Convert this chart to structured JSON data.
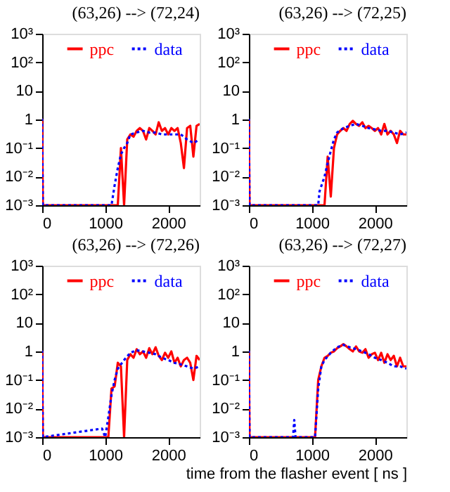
{
  "chart_data": [
    {
      "type": "line",
      "title": "(63,26) --> (72,24)",
      "xlim": [
        0,
        2500
      ],
      "xticks": [
        0,
        1000,
        2000
      ],
      "ylim": [
        0.001,
        1000
      ],
      "log": true,
      "grid": false,
      "legend": "top",
      "yticks": [
        {
          "value": 1000,
          "label": "10³"
        },
        {
          "value": 100,
          "label": "10²"
        },
        {
          "value": 10,
          "label": "10"
        },
        {
          "value": 1,
          "label": "1"
        },
        {
          "value": 0.1,
          "label": "10⁻¹"
        },
        {
          "value": 0.01,
          "label": "10⁻²"
        },
        {
          "value": 0.001,
          "label": "10⁻³"
        }
      ],
      "series": [
        {
          "name": "ppc",
          "color": "#ff0000",
          "line_style": "solid",
          "x": [
            0,
            0,
            10,
            1200,
            1250,
            1300,
            1350,
            1400,
            1450,
            1500,
            1550,
            1600,
            1650,
            1700,
            1750,
            1800,
            1850,
            1900,
            1950,
            2000,
            2050,
            2100,
            2150,
            2200,
            2250,
            2300,
            2350,
            2400,
            2450,
            2500
          ],
          "values": [
            0.001,
            1,
            0.001,
            0.001,
            0.1,
            0.001,
            0.2,
            0.3,
            0.25,
            0.4,
            0.5,
            0.4,
            0.2,
            0.5,
            0.4,
            0.3,
            0.8,
            0.4,
            0.5,
            0.3,
            0.5,
            0.4,
            0.5,
            0.15,
            0.02,
            0.5,
            0.6,
            0.05,
            0.6,
            0.7
          ]
        },
        {
          "name": "data",
          "color": "#0000ff",
          "line_style": "dotted",
          "x": [
            0,
            0,
            10,
            1100,
            1150,
            1200,
            1250,
            1300,
            1350,
            1400,
            1500,
            1600,
            1700,
            1800,
            1900,
            2000,
            2100,
            2200,
            2300,
            2400,
            2500
          ],
          "values": [
            0.001,
            1,
            0.001,
            0.001,
            0.005,
            0.02,
            0.06,
            0.1,
            0.15,
            0.3,
            0.35,
            0.4,
            0.35,
            0.35,
            0.3,
            0.3,
            0.3,
            0.3,
            0.2,
            0.15,
            0.2
          ]
        }
      ]
    },
    {
      "type": "line",
      "title": "(63,26) --> (72,25)",
      "xlim": [
        0,
        2500
      ],
      "xticks": [
        0,
        1000,
        2000
      ],
      "ylim": [
        0.001,
        1000
      ],
      "log": true,
      "grid": false,
      "legend": "top",
      "yticks": [
        {
          "value": 1000,
          "label": "10³"
        },
        {
          "value": 100,
          "label": "10²"
        },
        {
          "value": 10,
          "label": "10"
        },
        {
          "value": 1,
          "label": "1"
        },
        {
          "value": 0.1,
          "label": "10⁻¹"
        },
        {
          "value": 0.01,
          "label": "10⁻²"
        },
        {
          "value": 0.001,
          "label": "10⁻³"
        }
      ],
      "series": [
        {
          "name": "ppc",
          "color": "#ff0000",
          "line_style": "solid",
          "x": [
            0,
            0,
            10,
            1200,
            1250,
            1300,
            1350,
            1400,
            1450,
            1500,
            1550,
            1600,
            1650,
            1700,
            1750,
            1800,
            1850,
            1900,
            1950,
            2000,
            2050,
            2100,
            2150,
            2200,
            2250,
            2300,
            2350,
            2400,
            2450,
            2500
          ],
          "values": [
            0.001,
            1,
            0.001,
            0.001,
            0.05,
            0.002,
            0.1,
            0.3,
            0.4,
            0.5,
            0.4,
            0.7,
            0.9,
            0.7,
            0.6,
            0.8,
            0.5,
            0.6,
            0.5,
            0.4,
            0.5,
            0.3,
            0.7,
            0.3,
            0.4,
            0.3,
            0.15,
            0.4,
            0.3,
            0.3
          ]
        },
        {
          "name": "data",
          "color": "#0000ff",
          "line_style": "dotted",
          "x": [
            0,
            0,
            10,
            1100,
            1120,
            1200,
            1250,
            1300,
            1350,
            1400,
            1500,
            1600,
            1700,
            1800,
            1900,
            2000,
            2100,
            2200,
            2300,
            2400,
            2500
          ],
          "values": [
            0.001,
            1,
            0.001,
            0.001,
            0.003,
            0.01,
            0.03,
            0.08,
            0.2,
            0.35,
            0.5,
            0.6,
            0.7,
            0.6,
            0.5,
            0.45,
            0.4,
            0.4,
            0.35,
            0.3,
            0.35
          ]
        }
      ]
    },
    {
      "type": "line",
      "title": "(63,26) --> (72,26)",
      "xlim": [
        0,
        2500
      ],
      "xticks": [
        0,
        1000,
        2000
      ],
      "ylim": [
        0.001,
        1000
      ],
      "log": true,
      "grid": false,
      "legend": "top",
      "yticks": [
        {
          "value": 1000,
          "label": "10³"
        },
        {
          "value": 100,
          "label": "10²"
        },
        {
          "value": 10,
          "label": "10"
        },
        {
          "value": 1,
          "label": "1"
        },
        {
          "value": 0.1,
          "label": "10⁻¹"
        },
        {
          "value": 0.01,
          "label": "10⁻²"
        },
        {
          "value": 0.001,
          "label": "10⁻³"
        }
      ],
      "series": [
        {
          "name": "ppc",
          "color": "#ff0000",
          "line_style": "solid",
          "x": [
            0,
            0,
            10,
            1050,
            1100,
            1150,
            1200,
            1250,
            1300,
            1350,
            1400,
            1450,
            1500,
            1550,
            1600,
            1650,
            1700,
            1750,
            1800,
            1850,
            1900,
            1950,
            2000,
            2050,
            2100,
            2150,
            2200,
            2250,
            2300,
            2350,
            2400,
            2450,
            2500
          ],
          "values": [
            0.001,
            1,
            0.001,
            0.001,
            0.05,
            0.06,
            0.4,
            0.3,
            0.001,
            0.5,
            0.8,
            0.6,
            1.2,
            0.8,
            1.0,
            0.6,
            1.3,
            0.8,
            1.4,
            0.7,
            0.5,
            0.9,
            0.6,
            1.0,
            0.4,
            0.6,
            0.3,
            0.5,
            0.6,
            0.4,
            0.1,
            0.7,
            0.5
          ]
        },
        {
          "name": "data",
          "color": "#0000ff",
          "line_style": "dotted",
          "x": [
            0,
            0,
            10,
            950,
            1000,
            1050,
            1100,
            1150,
            1200,
            1300,
            1400,
            1500,
            1600,
            1700,
            1800,
            1900,
            2000,
            2100,
            2200,
            2300,
            2400,
            2500
          ],
          "values": [
            0.001,
            1,
            0.001,
            0.002,
            0.001,
            0.005,
            0.03,
            0.1,
            0.25,
            0.5,
            0.9,
            1.1,
            1.0,
            0.9,
            0.8,
            0.6,
            0.5,
            0.4,
            0.35,
            0.3,
            0.25,
            0.3
          ]
        }
      ]
    },
    {
      "type": "line",
      "title": "(63,26) --> (72,27)",
      "xlabel": "time from the flasher event [ ns ]",
      "xlim": [
        0,
        2500
      ],
      "xticks": [
        0,
        1000,
        2000
      ],
      "ylim": [
        0.001,
        1000
      ],
      "log": true,
      "grid": false,
      "legend": "top",
      "yticks": [
        {
          "value": 1000,
          "label": "10³"
        },
        {
          "value": 100,
          "label": "10²"
        },
        {
          "value": 10,
          "label": "10"
        },
        {
          "value": 1,
          "label": "1"
        },
        {
          "value": 0.1,
          "label": "10⁻¹"
        },
        {
          "value": 0.01,
          "label": "10⁻²"
        },
        {
          "value": 0.001,
          "label": "10⁻³"
        }
      ],
      "series": [
        {
          "name": "ppc",
          "color": "#ff0000",
          "line_style": "solid",
          "x": [
            0,
            0,
            10,
            1050,
            1100,
            1150,
            1200,
            1250,
            1300,
            1350,
            1400,
            1450,
            1500,
            1550,
            1600,
            1650,
            1700,
            1750,
            1800,
            1850,
            1900,
            1950,
            2000,
            2050,
            2100,
            2150,
            2200,
            2250,
            2300,
            2350,
            2400,
            2450,
            2500
          ],
          "values": [
            0.001,
            1,
            0.001,
            0.001,
            0.1,
            0.3,
            0.6,
            0.7,
            0.9,
            1.0,
            1.3,
            1.5,
            1.8,
            1.5,
            1.2,
            1.0,
            1.5,
            1.0,
            0.9,
            1.2,
            0.6,
            0.8,
            0.9,
            0.5,
            0.9,
            0.4,
            0.8,
            0.5,
            0.7,
            0.3,
            0.6,
            0.3,
            0.3
          ]
        },
        {
          "name": "data",
          "color": "#0000ff",
          "line_style": "dotted",
          "x": [
            0,
            0,
            10,
            700,
            720,
            740,
            1050,
            1100,
            1150,
            1200,
            1300,
            1400,
            1500,
            1600,
            1700,
            1800,
            1900,
            2000,
            2100,
            2200,
            2300,
            2400,
            2500
          ],
          "values": [
            0.001,
            1,
            0.001,
            0.001,
            0.004,
            0.001,
            0.001,
            0.05,
            0.3,
            0.5,
            0.9,
            1.4,
            1.7,
            1.4,
            1.2,
            1.0,
            0.8,
            0.6,
            0.5,
            0.4,
            0.3,
            0.3,
            0.25
          ]
        }
      ]
    }
  ]
}
